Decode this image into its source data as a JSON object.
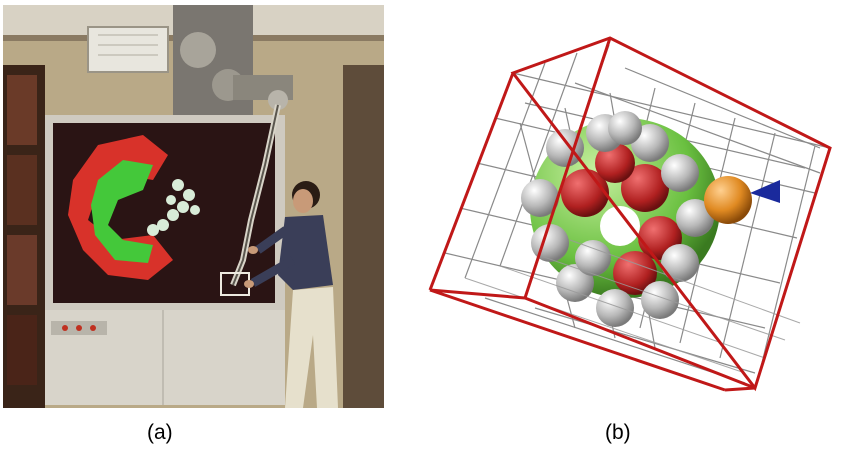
{
  "figure": {
    "panels": [
      {
        "id": "a",
        "caption": "(a)",
        "description_icon": "photo-haptic-arm-molecular-docking"
      },
      {
        "id": "b",
        "caption": "(b)",
        "description_icon": "molecule-in-grid-cube"
      }
    ]
  },
  "colors": {
    "wall": "#b8a88e",
    "screen_bg": "#2a1414",
    "protein_red": "#d8322a",
    "protein_green": "#44c83a",
    "ligand_white": "#d8ecd8",
    "cube_red": "#c01818",
    "grid_gray": "#8a8a8a",
    "probe_orange": "#e08a22",
    "cone_blue": "#1a2a9c"
  }
}
